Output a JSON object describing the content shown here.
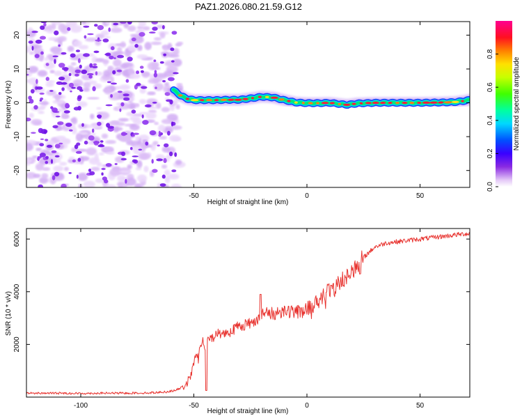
{
  "title": "PAZ1.2026.080.21.59.G12",
  "chart_data": [
    {
      "type": "heatmap",
      "name": "spectrogram",
      "xlabel": "Height of straight line (km)",
      "ylabel": "Frequency (Hz)",
      "xlim": [
        -124,
        72
      ],
      "ylim": [
        -25,
        24
      ],
      "xticks": [
        -100,
        -50,
        0,
        50
      ],
      "xtick_labels": [
        "-100",
        "-50",
        "0",
        "50"
      ],
      "yticks": [
        -20,
        -10,
        0,
        10,
        20
      ],
      "ytick_labels": [
        "-20",
        "-10",
        "0",
        "10",
        "20"
      ],
      "noise_region_x": [
        -124,
        -58
      ],
      "signal_ridge": {
        "x": [
          -59,
          -56,
          -53,
          -50,
          -45,
          -40,
          -35,
          -30,
          -25,
          -20,
          -15,
          -10,
          -5,
          0,
          5,
          10,
          15,
          18,
          22,
          30,
          40,
          50,
          60,
          65,
          70,
          72
        ],
        "freq": [
          3.8,
          2.2,
          1.2,
          0.8,
          0.8,
          0.8,
          0.9,
          0.9,
          1.3,
          1.8,
          1.6,
          0.8,
          0.1,
          -0.1,
          -0.1,
          0,
          -0.4,
          -0.6,
          -0.2,
          0,
          0,
          0,
          0.1,
          0.2,
          0.6,
          0.9
        ]
      },
      "colorbar": {
        "label": "Normalized spectral amplitude",
        "range": [
          0,
          1
        ],
        "ticks": [
          0.0,
          0.2,
          0.4,
          0.6,
          0.8
        ],
        "tick_labels": [
          "0.0",
          "0.2",
          "0.4",
          "0.6",
          "0.8"
        ]
      }
    },
    {
      "type": "line",
      "name": "snr",
      "xlabel": "Height of straight line (km)",
      "ylabel": "SNR (10 * v/v)",
      "xlim": [
        -124,
        72
      ],
      "ylim": [
        0,
        6400
      ],
      "xticks": [
        -100,
        -50,
        0,
        50
      ],
      "xtick_labels": [
        "-100",
        "-50",
        "0",
        "50"
      ],
      "yticks": [
        2000,
        4000,
        6000
      ],
      "ytick_labels": [
        "2000",
        "4000",
        "6000"
      ],
      "color": "#e8332f",
      "series": [
        {
          "name": "SNR",
          "x": [
            -124,
            -110,
            -100,
            -90,
            -80,
            -70,
            -62,
            -58,
            -55,
            -52,
            -50,
            -49,
            -48,
            -47,
            -46,
            -45,
            -44,
            -42,
            -40,
            -35,
            -30,
            -25,
            -20,
            -18,
            -15,
            -10,
            -5,
            0,
            5,
            10,
            15,
            20,
            25,
            30,
            35,
            40,
            45,
            50,
            55,
            60,
            65,
            70,
            72
          ],
          "y": [
            150,
            150,
            140,
            150,
            150,
            160,
            200,
            260,
            380,
            650,
            1200,
            1800,
            1400,
            2000,
            2150,
            1750,
            2100,
            2250,
            2400,
            2450,
            2700,
            2800,
            3100,
            3200,
            3150,
            3300,
            3200,
            3350,
            3700,
            4050,
            4400,
            4800,
            5300,
            5700,
            5850,
            5900,
            5950,
            6000,
            6050,
            6100,
            6150,
            6200,
            6200
          ]
        }
      ]
    }
  ]
}
